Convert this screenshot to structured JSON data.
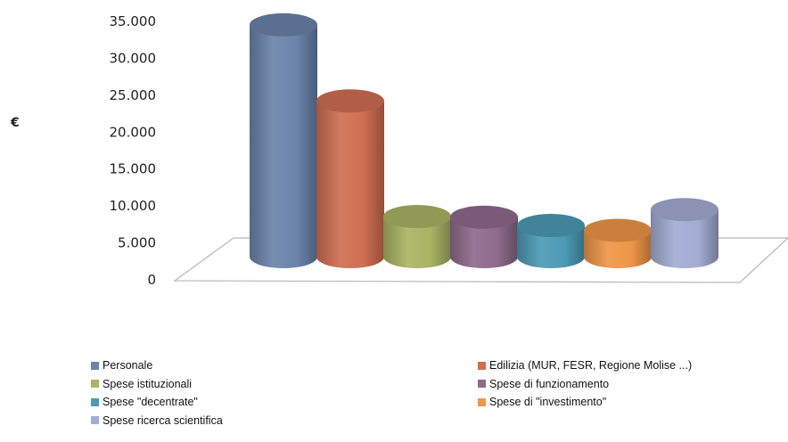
{
  "chart_data": {
    "type": "bar",
    "ylabel": "€",
    "ylim": [
      0,
      35000
    ],
    "yticks": [
      "0",
      "5.000",
      "10.000",
      "15.000",
      "20.000",
      "25.000",
      "30.000",
      "35.000"
    ],
    "tick_step": 5000,
    "grid": false,
    "legend_position": "bottom",
    "series": [
      {
        "name": "Personale",
        "value": 33500,
        "color": "#6b84ab"
      },
      {
        "name": "Edilizia (MUR, FESR, Regione Molise ...)",
        "value": 22500,
        "color": "#cf6e52"
      },
      {
        "name": "Spese istituzionali",
        "value": 5800,
        "color": "#a9b464"
      },
      {
        "name": "Spese di funzionamento",
        "value": 5700,
        "color": "#8f6a8c"
      },
      {
        "name": "Spese \"decentrate\"",
        "value": 4500,
        "color": "#4d9ab5"
      },
      {
        "name": "Spese di \"investimento\"",
        "value": 3800,
        "color": "#ee9647"
      },
      {
        "name": "Spese  ricerca scientifica",
        "value": 6800,
        "color": "#a3acd4"
      }
    ]
  }
}
